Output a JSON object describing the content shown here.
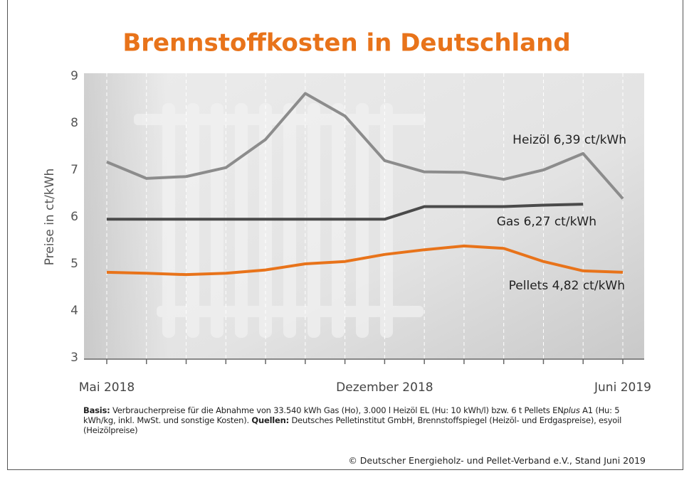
{
  "chart_data": {
    "type": "line",
    "title": "Brennstoffkosten in Deutschland",
    "y_label": "Preise in ct/kWh",
    "categories": [
      "Mai 2018",
      null,
      null,
      null,
      null,
      null,
      null,
      "Dezember 2018",
      null,
      null,
      null,
      null,
      null,
      "Juni 2019"
    ],
    "series": [
      {
        "name": "Heizöl 6,39 ct/kWh",
        "color": "#8c8c8c",
        "values": [
          7.17,
          6.82,
          6.86,
          7.05,
          7.65,
          8.63,
          8.15,
          7.2,
          6.96,
          6.95,
          6.8,
          7.0,
          7.35,
          6.39
        ]
      },
      {
        "name": "Gas 6,27 ct/kWh",
        "color": "#4a4a4a",
        "values": [
          5.95,
          5.95,
          5.95,
          5.95,
          5.95,
          5.95,
          5.95,
          5.95,
          6.22,
          6.22,
          6.22,
          6.25,
          6.27,
          null
        ]
      },
      {
        "name": "Pellets 4,82 ct/kWh",
        "color": "#e8731a",
        "values": [
          4.82,
          4.8,
          4.77,
          4.8,
          4.87,
          5.0,
          5.05,
          5.2,
          5.3,
          5.38,
          5.33,
          5.05,
          4.85,
          4.82
        ]
      }
    ],
    "ylim": [
      3,
      9
    ],
    "yticks": [
      3,
      4,
      5,
      6,
      7,
      8,
      9
    ],
    "footnote": [
      "Basis:",
      " Verbraucherpreise für die Abnahme von 33.540 kWh Gas (Ho), 3.000 l Heizöl EL (Hu: 10 kWh/l) bzw. 6 t Pellets EN",
      "plus",
      " A1 (Hu: 5 kWh/kg, inkl. MwSt. und sonstige Kosten). ",
      "Quellen:",
      " Deutsches Pelletinstitut GmbH, Brennstoffspiegel (Heizöl- und Erdgaspreise), esyoil (Heizölpreise)"
    ],
    "copyright": "© Deutscher Energieholz- und Pellet-Verband e.V., Stand Juni 2019"
  }
}
